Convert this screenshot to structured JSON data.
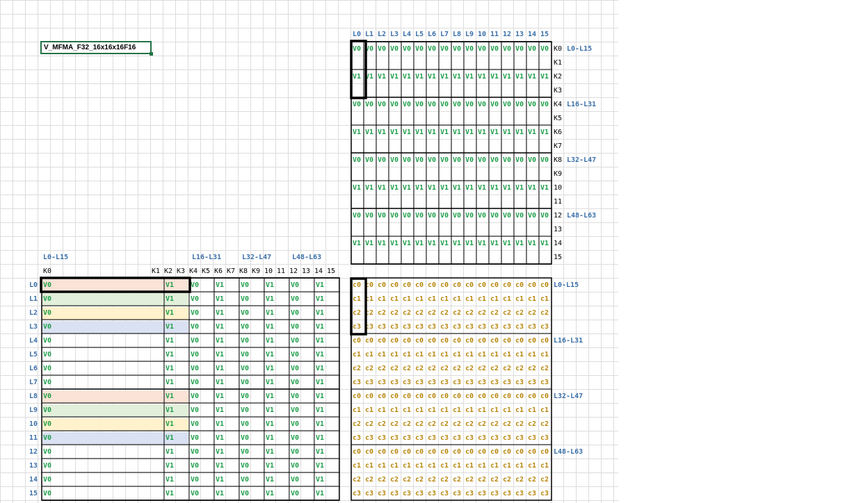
{
  "title_cell": "V_MFMA_F32_16x16x16F16",
  "b_matrix": {
    "col_headers": [
      "L0",
      "L1",
      "L2",
      "L3",
      "L4",
      "L5",
      "L6",
      "L7",
      "L8",
      "L9",
      "10",
      "11",
      "12",
      "13",
      "14",
      "15"
    ],
    "row_labels": [
      "K0",
      "K1",
      "K2",
      "K3",
      "K4",
      "K5",
      "K6",
      "K7",
      "K8",
      "K9",
      "10",
      "11",
      "12",
      "13",
      "14",
      "15"
    ],
    "block_labels": [
      "L0-L15",
      "L16-L31",
      "L32-L47",
      "L48-L63"
    ],
    "v0": "V0",
    "v1": "V1"
  },
  "a_matrix": {
    "block_labels": [
      "L0-L15",
      "L16-L31",
      "L32-L47",
      "L48-L63"
    ],
    "col_headers": [
      "K0",
      "K1",
      "K2",
      "K3",
      "K4",
      "K5",
      "K6",
      "K7",
      "K8",
      "K9",
      "10",
      "11",
      "12",
      "13",
      "14",
      "15"
    ],
    "row_labels": [
      "L0",
      "L1",
      "L2",
      "L3",
      "L4",
      "L5",
      "L6",
      "L7",
      "L8",
      "L9",
      "10",
      "11",
      "12",
      "13",
      "14",
      "15"
    ],
    "v0": "V0",
    "v1": "V1"
  },
  "c_matrix": {
    "values": [
      "c0",
      "c1",
      "c2",
      "c3"
    ],
    "block_labels": [
      "L0-L15",
      "L16-L31",
      "L32-L47",
      "L48-L63"
    ]
  },
  "colors": {
    "blue": "#3a6fa8",
    "green": "#1e9e4a",
    "gold": "#b8860b",
    "row_pink": "#fbe3d6",
    "row_green": "#e2efda",
    "row_yellow": "#fff2cc",
    "row_blue": "#d9e1f2",
    "selection": "#217346"
  }
}
